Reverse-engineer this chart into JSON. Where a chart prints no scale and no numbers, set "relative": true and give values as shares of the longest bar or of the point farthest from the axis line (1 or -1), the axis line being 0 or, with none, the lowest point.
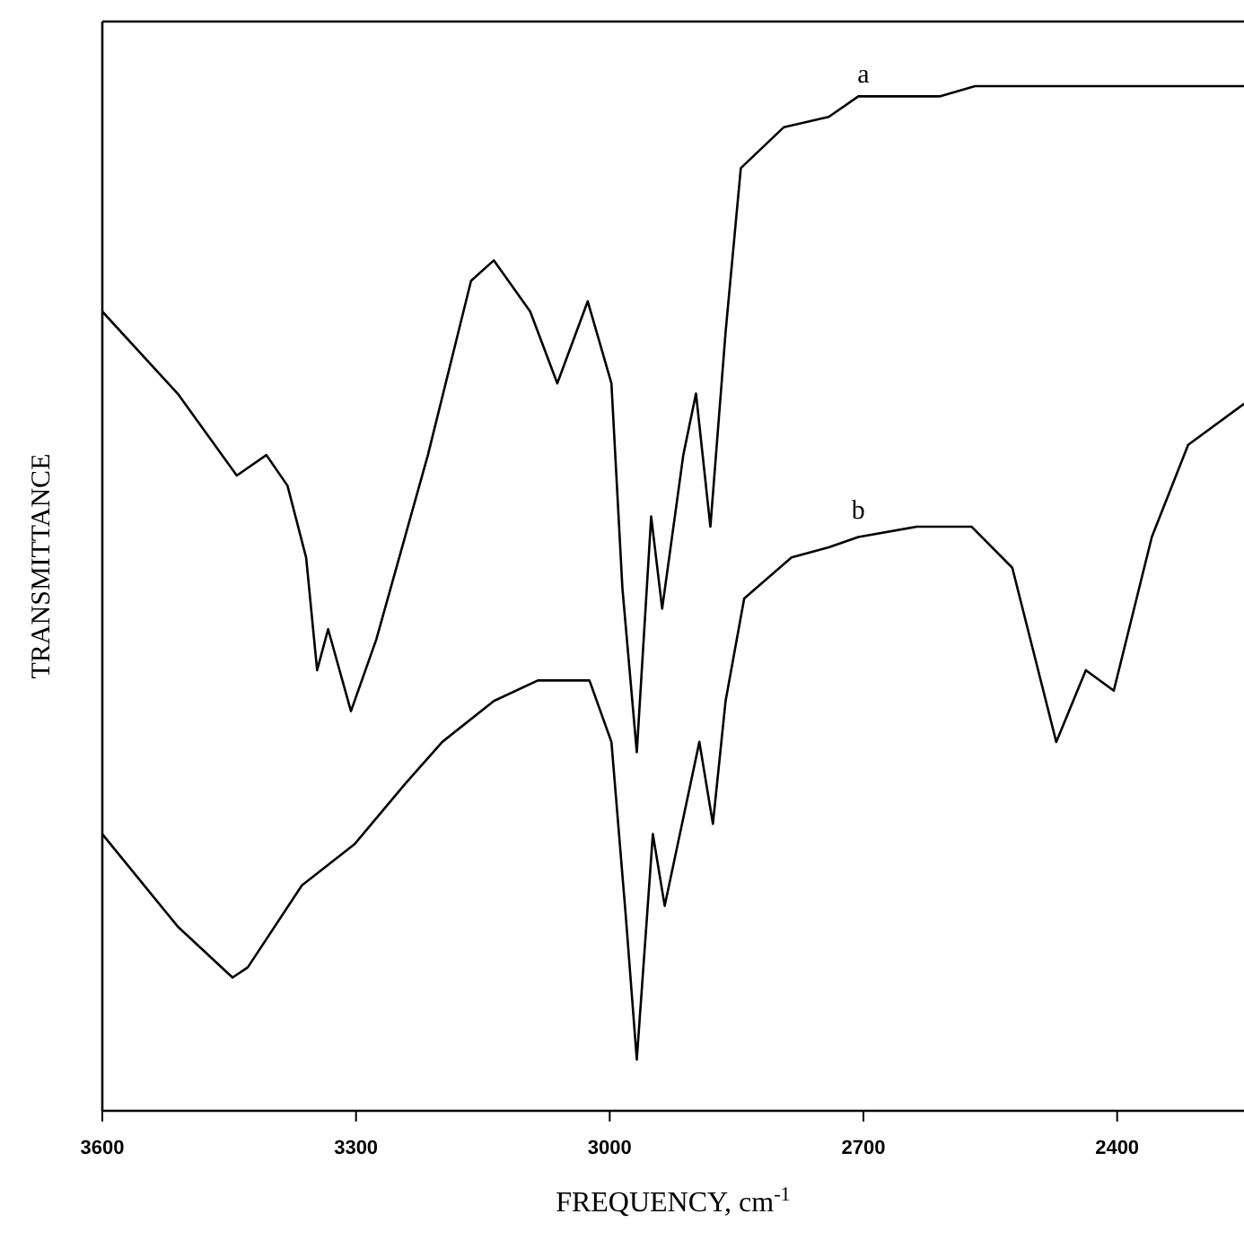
{
  "chart_data": {
    "type": "line",
    "xlabel": "FREQUENCY, cm$^{-1}$",
    "ylabel": "TRANSMITTANCE",
    "relative": true,
    "xlim": [
      3600,
      2250
    ],
    "xticks": [
      3600,
      3300,
      3000,
      2700,
      2400
    ],
    "marker": "none",
    "line_style": "solid",
    "annotations": [
      {
        "text": "a",
        "x": 2700,
        "y": 0.986
      },
      {
        "text": "b",
        "x": 2706,
        "y": 0.56
      }
    ],
    "series": [
      {
        "color": "#000000",
        "x": [
          3600,
          3511,
          3441,
          3406,
          3381,
          3359,
          3346,
          3333,
          3306,
          3276,
          3215,
          3164,
          3137,
          3094,
          3062,
          3026,
          2998,
          2985,
          2968,
          2951,
          2938,
          2913,
          2898,
          2881,
          2863,
          2845,
          2794,
          2741,
          2706,
          2672,
          2610,
          2568,
          2481,
          2342,
          2250
        ],
        "values": [
          0.78,
          0.7,
          0.62,
          0.64,
          0.61,
          0.54,
          0.43,
          0.47,
          0.39,
          0.46,
          0.64,
          0.81,
          0.83,
          0.78,
          0.71,
          0.79,
          0.71,
          0.51,
          0.35,
          0.58,
          0.49,
          0.64,
          0.7,
          0.57,
          0.76,
          0.92,
          0.96,
          0.97,
          0.99,
          0.99,
          0.99,
          1.0,
          1.0,
          1.0,
          1.0
        ]
      },
      {
        "color": "#000000",
        "x": [
          3600,
          3511,
          3446,
          3428,
          3364,
          3302,
          3241,
          3198,
          3137,
          3085,
          3024,
          2998,
          2981,
          2968,
          2949,
          2935,
          2894,
          2878,
          2863,
          2841,
          2785,
          2741,
          2706,
          2637,
          2572,
          2524,
          2472,
          2437,
          2404,
          2359,
          2316,
          2250
        ],
        "values": [
          0.27,
          0.18,
          0.13,
          0.14,
          0.22,
          0.26,
          0.32,
          0.36,
          0.4,
          0.42,
          0.42,
          0.36,
          0.19,
          0.05,
          0.27,
          0.2,
          0.36,
          0.28,
          0.4,
          0.5,
          0.54,
          0.55,
          0.56,
          0.57,
          0.57,
          0.53,
          0.36,
          0.43,
          0.41,
          0.56,
          0.65,
          0.69
        ]
      }
    ]
  }
}
